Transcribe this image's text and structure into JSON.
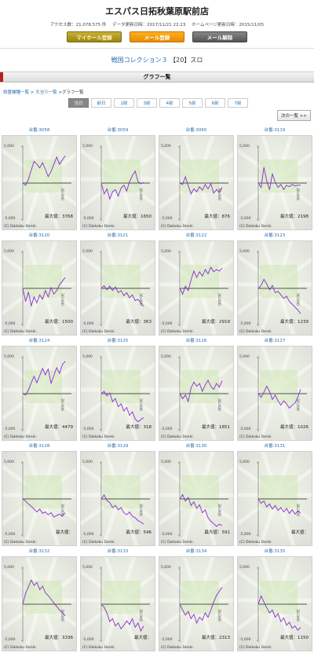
{
  "header": {
    "shop_name": "エスパス日拓秋葉原駅前店",
    "access_count": "アクセス数：21,078,575 件",
    "data_updated": "データ更新日時：2017/11/21 22:23",
    "homepage_updated": "ホームページ更新日時：2015/11/05",
    "buttons": {
      "my_hall": "マイホール登録",
      "mail_register": "メール登録",
      "mail_unregister": "メール解除"
    }
  },
  "machine": {
    "name": "戦国コレクション３",
    "suffix": "【20】スロ"
  },
  "section_title": "グラフ一覧",
  "breadcrumb": {
    "item1": "設置機種一覧",
    "sep1": " >",
    "item2": "大当り一覧",
    "sep2": " >",
    "current": "グラフ一覧"
  },
  "day_tabs": [
    "当日",
    "前日",
    "2前",
    "3前",
    "4前",
    "5前",
    "6前",
    "7前"
  ],
  "next_button": "次の一覧 >>",
  "graph_labels": {
    "y_top": "5,000",
    "y_bottom": "-5,000",
    "x_max": "30,000",
    "copyright": "(C) Daikoku Denki."
  },
  "units": [
    {
      "label": "台番:3058",
      "max": "最大値：3768",
      "series": [
        0,
        -300,
        500,
        1800,
        3000,
        2600,
        2100,
        2800,
        1900,
        900,
        1600,
        2600,
        3600,
        2600,
        3200,
        3768
      ]
    },
    {
      "label": "台番:3059",
      "max": "最大値：1650",
      "series": [
        0,
        -1500,
        -800,
        -2200,
        -1200,
        -900,
        -1800,
        -700,
        -300,
        -1100,
        200,
        1000,
        1650,
        200,
        -100,
        100
      ]
    },
    {
      "label": "台番:3060",
      "max": "最大値：876",
      "series": [
        0,
        -200,
        876,
        -400,
        -1500,
        -800,
        -1200,
        -500,
        -1000,
        -200,
        -800,
        -100,
        -1400,
        -900,
        -1300,
        -600
      ]
    },
    {
      "label": "台番:3119",
      "max": "最大値：2198",
      "series": [
        0,
        -600,
        2198,
        300,
        -900,
        1300,
        100,
        -600,
        -200,
        -900,
        -300,
        -500,
        -200,
        -400,
        -300,
        -300
      ]
    },
    {
      "label": "台番:3120",
      "max": "最大値：1500",
      "series": [
        0,
        -1800,
        -500,
        -2400,
        -1200,
        -2000,
        -900,
        -1500,
        -300,
        -1200,
        100,
        -800,
        -300,
        500,
        1000,
        1500
      ]
    },
    {
      "label": "台番:3121",
      "max": "最大値：363",
      "series": [
        0,
        363,
        -200,
        300,
        -300,
        200,
        -600,
        -300,
        -1000,
        -600,
        -1300,
        -900,
        -1700,
        -1500,
        -2000,
        -2500
      ]
    },
    {
      "label": "台番:3122",
      "max": "最大値：2919",
      "series": [
        0,
        -800,
        300,
        -300,
        1200,
        2400,
        1500,
        2300,
        1700,
        2600,
        2000,
        2919,
        2300,
        2600,
        2400,
        2800
      ]
    },
    {
      "label": "台番:3123",
      "max": "最大値：1239",
      "series": [
        0,
        400,
        1239,
        600,
        -200,
        400,
        -600,
        -400,
        -900,
        -1400,
        -1100,
        -1800,
        -2200,
        -2600,
        -3000,
        -3500
      ]
    },
    {
      "label": "台番:3124",
      "max": "最大値：4479",
      "series": [
        0,
        -200,
        500,
        1500,
        2400,
        1500,
        2500,
        3500,
        2600,
        3400,
        1400,
        2500,
        3600,
        2800,
        4000,
        4479
      ]
    },
    {
      "label": "台番:3125",
      "max": "最大値：318",
      "series": [
        0,
        318,
        -300,
        100,
        -1100,
        -700,
        -1800,
        -1400,
        -2400,
        -1900,
        -3000,
        -2500,
        -3500,
        -3900,
        -3600,
        -3300
      ]
    },
    {
      "label": "台番:3126",
      "max": "最大値：1851",
      "series": [
        0,
        -700,
        -200,
        -1100,
        800,
        1600,
        1000,
        1400,
        300,
        1200,
        1851,
        1000,
        600,
        1400,
        900,
        1800
      ]
    },
    {
      "label": "台番:3127",
      "max": "最大値：1026",
      "series": [
        0,
        -500,
        200,
        1026,
        300,
        -800,
        -200,
        -1000,
        -1600,
        -1000,
        -1400,
        -2000,
        -1600,
        -1300,
        -500,
        600
      ]
    },
    {
      "label": "台番:3128",
      "max": "最大値：",
      "series": [
        0,
        -300,
        -700,
        -1000,
        -1400,
        -1800,
        -1400,
        -2000,
        -1800,
        -2200,
        -1900,
        -2500,
        -2300,
        -2100,
        -2400,
        -1900
      ]
    },
    {
      "label": "台番:3129",
      "max": "最大値：546",
      "series": [
        0,
        546,
        -200,
        -500,
        -1200,
        -900,
        -1500,
        -1200,
        -1900,
        -2200,
        -1800,
        -2400,
        -2600,
        -3000,
        -3200,
        -3500
      ]
    },
    {
      "label": "台番:3130",
      "max": "最大値：591",
      "series": [
        0,
        591,
        -300,
        200,
        -900,
        -400,
        -1300,
        -800,
        -1900,
        -1500,
        -2600,
        -3100,
        -3400,
        -3800,
        -3500,
        -3700
      ]
    },
    {
      "label": "台番:3131",
      "max": "最大値：",
      "series": [
        0,
        -600,
        -300,
        -1100,
        -700,
        -1400,
        -900,
        -1600,
        -1200,
        -1800,
        -1300,
        -2000,
        -1500,
        -2100,
        -1700,
        -1900
      ]
    },
    {
      "label": "台番:3132",
      "max": "最大値：3336",
      "series": [
        0,
        1500,
        2400,
        3336,
        2600,
        3000,
        2000,
        2500,
        1600,
        1200,
        700,
        200,
        -300,
        -800,
        -1200,
        -1600
      ]
    },
    {
      "label": "台番:3133",
      "max": "最大値：",
      "series": [
        0,
        -400,
        -1200,
        -2400,
        -2000,
        -3000,
        -2600,
        -3400,
        -2900,
        -2300,
        -2800,
        -2000,
        -3200,
        -2600,
        -3700,
        -3000
      ]
    },
    {
      "label": "台番:3134",
      "max": "最大値：2313",
      "series": [
        0,
        -800,
        -1500,
        -1000,
        -2000,
        -1400,
        -2600,
        -1800,
        -2200,
        -1200,
        -1800,
        -800,
        300,
        1200,
        1800,
        2313
      ]
    },
    {
      "label": "台番:3135",
      "max": "最大値：1150",
      "series": [
        0,
        1150,
        300,
        -500,
        -1200,
        -800,
        -1800,
        -1300,
        -2400,
        -1900,
        -2900,
        -2500,
        -3300,
        -3000,
        -3600,
        -3200
      ]
    }
  ]
}
